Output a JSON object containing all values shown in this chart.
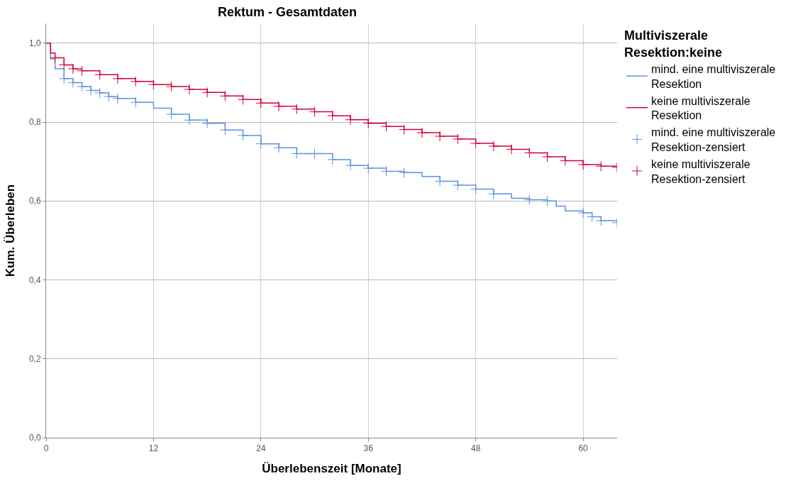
{
  "chart_data": {
    "type": "step",
    "title": "Rektum - Gesamtdaten",
    "xlabel": "Überlebenszeit [Monate]",
    "ylabel": "Kum. Überleben",
    "legend_title": "Multiviszerale\nResektion:keine",
    "xlim": [
      0,
      63.8
    ],
    "xticks": [
      0,
      12,
      24,
      36,
      48,
      60
    ],
    "ylim": [
      0,
      1.05
    ],
    "yticks": [
      {
        "value": 0,
        "label": "0,0"
      },
      {
        "value": 0.2,
        "label": "0,2"
      },
      {
        "value": 0.4,
        "label": "0,4"
      },
      {
        "value": 0.6,
        "label": "0,6"
      },
      {
        "value": 0.8,
        "label": "0,8"
      },
      {
        "value": 1.0,
        "label": "1,0"
      }
    ],
    "grid": true,
    "legend": "top right",
    "series": [
      {
        "name": "mind. eine multiviszerale\nResektion",
        "color": "#5b93e0",
        "x": [
          0,
          0.5,
          1,
          2,
          3,
          4,
          5,
          6,
          7,
          8,
          10,
          12,
          14,
          16,
          18,
          20,
          22,
          24,
          26,
          28,
          30,
          32,
          34,
          36,
          38,
          40,
          42,
          44,
          46,
          48,
          50,
          52,
          54,
          56,
          57,
          58,
          60,
          61,
          62,
          63.8
        ],
        "values": [
          1.0,
          0.96,
          0.935,
          0.91,
          0.9,
          0.89,
          0.88,
          0.874,
          0.865,
          0.86,
          0.85,
          0.835,
          0.82,
          0.805,
          0.797,
          0.78,
          0.766,
          0.745,
          0.735,
          0.72,
          0.72,
          0.705,
          0.69,
          0.683,
          0.675,
          0.672,
          0.662,
          0.65,
          0.64,
          0.63,
          0.618,
          0.607,
          0.603,
          0.6,
          0.587,
          0.575,
          0.57,
          0.56,
          0.55,
          0.545
        ]
      },
      {
        "name": "keine multiviszerale\nResektion",
        "color": "#d50032",
        "x": [
          0,
          0.5,
          1,
          2,
          3,
          4,
          6,
          8,
          10,
          12,
          14,
          16,
          18,
          20,
          22,
          24,
          26,
          28,
          30,
          32,
          34,
          36,
          38,
          40,
          42,
          44,
          46,
          48,
          50,
          52,
          54,
          56,
          58,
          60,
          62,
          63.8
        ],
        "values": [
          1.0,
          0.975,
          0.963,
          0.945,
          0.935,
          0.93,
          0.92,
          0.91,
          0.903,
          0.895,
          0.89,
          0.883,
          0.875,
          0.866,
          0.857,
          0.848,
          0.84,
          0.833,
          0.826,
          0.816,
          0.806,
          0.797,
          0.789,
          0.781,
          0.773,
          0.764,
          0.757,
          0.746,
          0.739,
          0.731,
          0.722,
          0.712,
          0.702,
          0.692,
          0.688,
          0.685
        ]
      },
      {
        "name": "mind. eine multiviszerale\nResektion-zensiert",
        "type": "scatter",
        "marker": "cross",
        "color": "#5b93e0",
        "x": [
          2,
          3,
          4,
          5,
          6,
          7,
          8,
          10,
          14,
          16,
          18,
          20,
          22,
          24,
          26,
          28,
          30,
          32,
          34,
          36,
          38,
          40,
          44,
          46,
          48,
          50,
          54,
          56,
          60,
          61,
          62,
          63.8
        ],
        "values": [
          0.91,
          0.9,
          0.89,
          0.88,
          0.874,
          0.865,
          0.86,
          0.85,
          0.82,
          0.805,
          0.797,
          0.78,
          0.766,
          0.745,
          0.735,
          0.72,
          0.72,
          0.705,
          0.69,
          0.683,
          0.675,
          0.672,
          0.65,
          0.64,
          0.63,
          0.618,
          0.603,
          0.6,
          0.57,
          0.56,
          0.55,
          0.545
        ]
      },
      {
        "name": "keine multiviszerale\nResektion-zensiert",
        "type": "scatter",
        "marker": "cross",
        "color": "#d50032",
        "x": [
          1,
          2,
          3,
          4,
          6,
          8,
          10,
          12,
          14,
          16,
          18,
          20,
          22,
          24,
          26,
          28,
          30,
          32,
          34,
          36,
          38,
          40,
          42,
          44,
          46,
          48,
          50,
          52,
          54,
          56,
          58,
          60,
          62,
          63.8
        ],
        "values": [
          0.963,
          0.945,
          0.935,
          0.93,
          0.92,
          0.91,
          0.903,
          0.895,
          0.89,
          0.883,
          0.875,
          0.866,
          0.857,
          0.848,
          0.84,
          0.833,
          0.826,
          0.816,
          0.806,
          0.797,
          0.789,
          0.781,
          0.773,
          0.764,
          0.757,
          0.746,
          0.739,
          0.731,
          0.722,
          0.712,
          0.702,
          0.692,
          0.688,
          0.685
        ]
      }
    ]
  }
}
